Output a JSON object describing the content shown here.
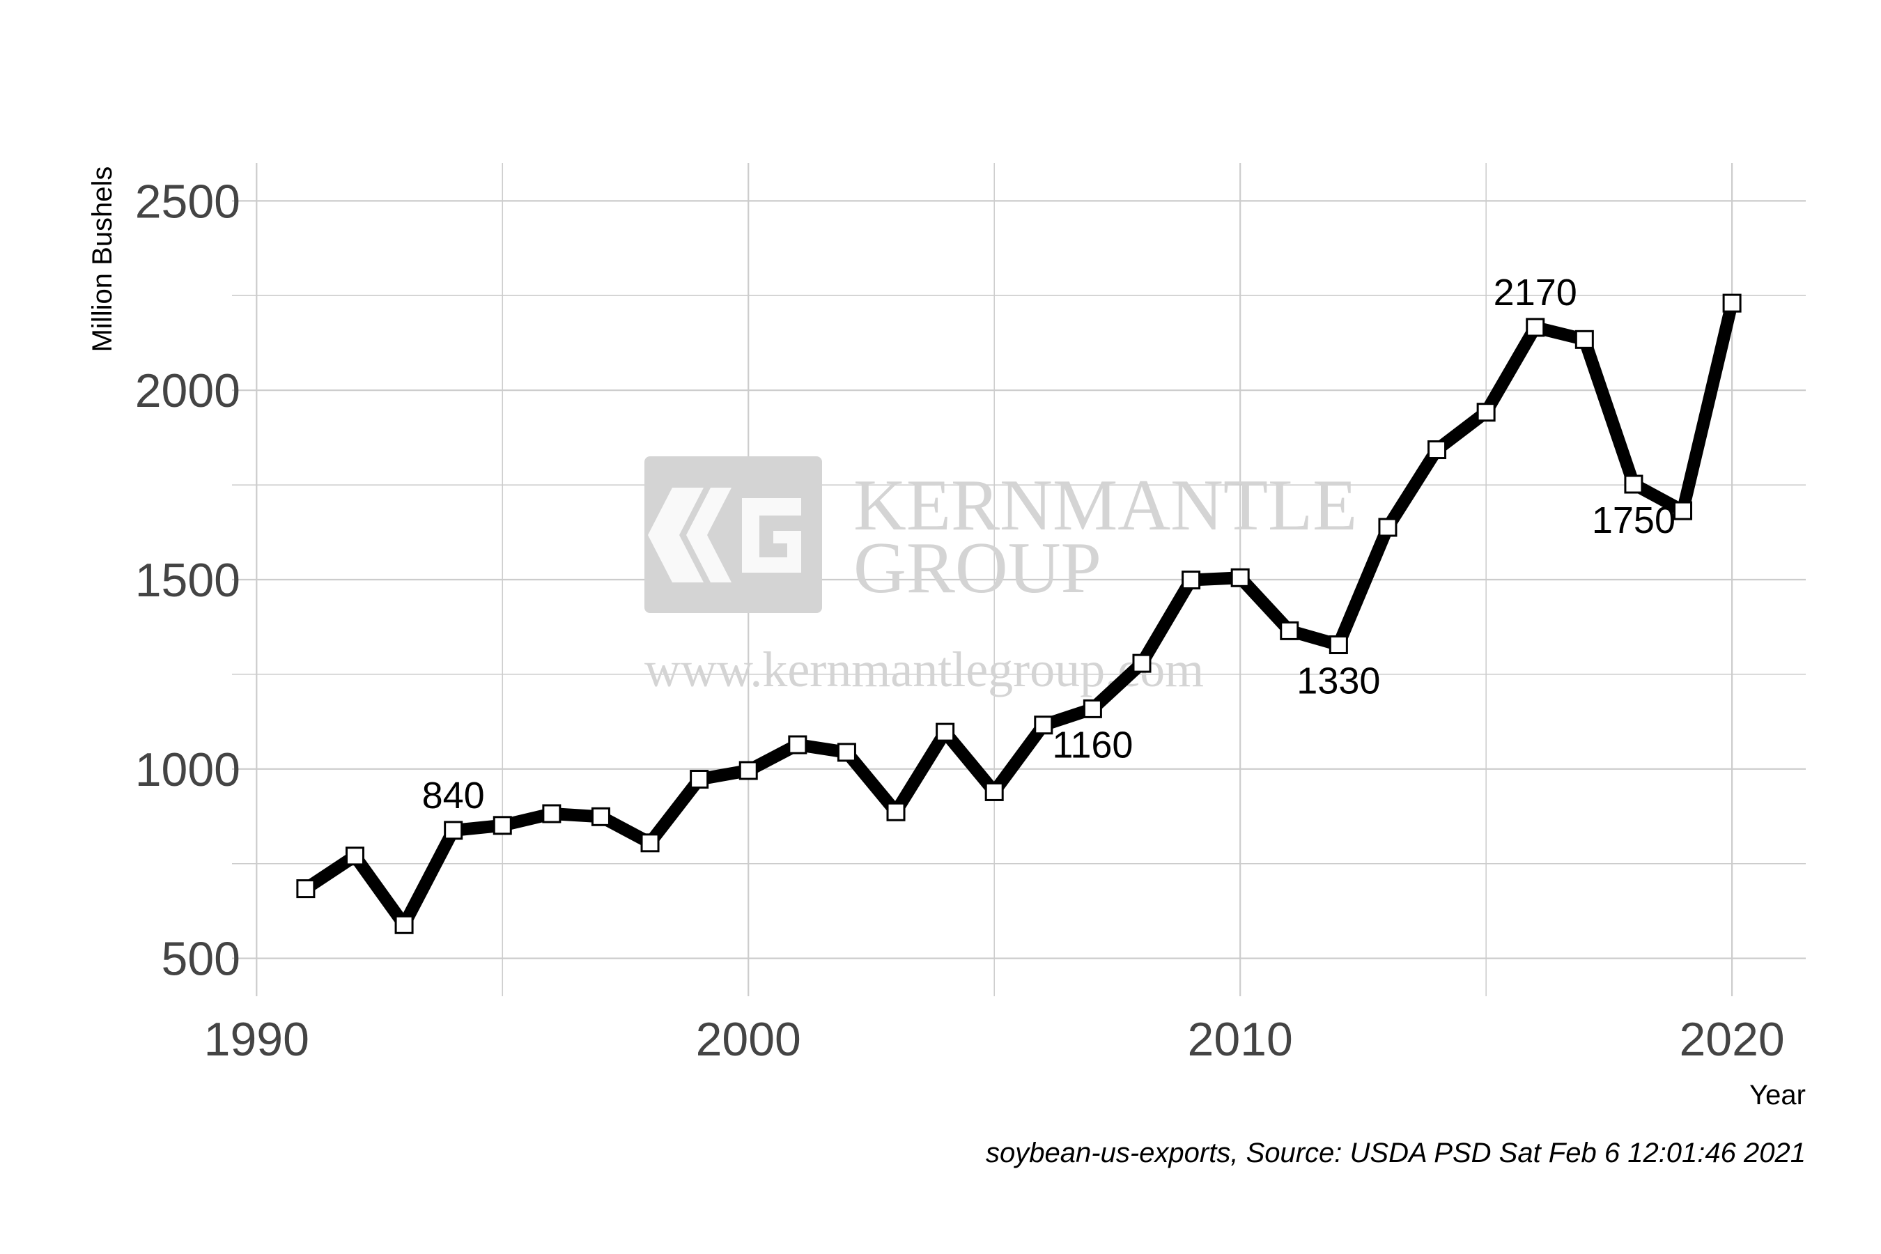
{
  "chart_data": {
    "type": "line",
    "title": "",
    "xlabel": "Year",
    "ylabel": "Million Bushels",
    "xlim": [
      1989.5,
      2021.5
    ],
    "ylim": [
      400,
      2600
    ],
    "x_ticks": [
      1990,
      2000,
      2010,
      2020
    ],
    "x_tick_labels": [
      "1990",
      "2000",
      "2010",
      "2020"
    ],
    "x_minor_ticks": [
      1995,
      2005,
      2015
    ],
    "y_ticks": [
      500,
      1000,
      1500,
      2000,
      2500
    ],
    "y_tick_labels": [
      "500",
      "1000",
      "1500",
      "2000",
      "2500"
    ],
    "y_minor_ticks": [
      750,
      1250,
      1750,
      2250
    ],
    "grid": true,
    "legend": "none",
    "series": [
      {
        "x": [
          1991,
          1992,
          1993,
          1994,
          1995,
          1996,
          1997,
          1998,
          1999,
          2000,
          2001,
          2002,
          2003,
          2004,
          2005,
          2006,
          2007,
          2008,
          2009,
          2010,
          2011,
          2012,
          2013,
          2014,
          2015,
          2016,
          2017,
          2018,
          2019,
          2020
        ],
        "values": [
          684,
          770,
          589,
          838,
          851,
          882,
          874,
          805,
          973,
          996,
          1064,
          1044,
          887,
          1097,
          940,
          1116,
          1159,
          1279,
          1499,
          1505,
          1365,
          1328,
          1638,
          1843,
          1942,
          2166,
          2134,
          1752,
          1682,
          2230
        ]
      }
    ],
    "annotations": [
      {
        "text": "840",
        "x": 1994,
        "y": 838,
        "anchor": "above"
      },
      {
        "text": "1160",
        "x": 2007,
        "y": 1159,
        "anchor": "below"
      },
      {
        "text": "1330",
        "x": 2012,
        "y": 1328,
        "anchor": "below"
      },
      {
        "text": "2170",
        "x": 2016,
        "y": 2166,
        "anchor": "above"
      },
      {
        "text": "1750",
        "x": 2018,
        "y": 1752,
        "anchor": "below"
      }
    ],
    "line_color": "#000000",
    "marker_fill": "#ffffff",
    "grid_color": "#cccccc",
    "caption": "soybean-us-exports, Source: USDA PSD Sat Feb  6 12:01:46 2021"
  },
  "watermark": {
    "line1": "KERNMANTLE",
    "line2": "GROUP",
    "url": "www.kernmantlegroup.com",
    "color": "#d4d4d4"
  }
}
